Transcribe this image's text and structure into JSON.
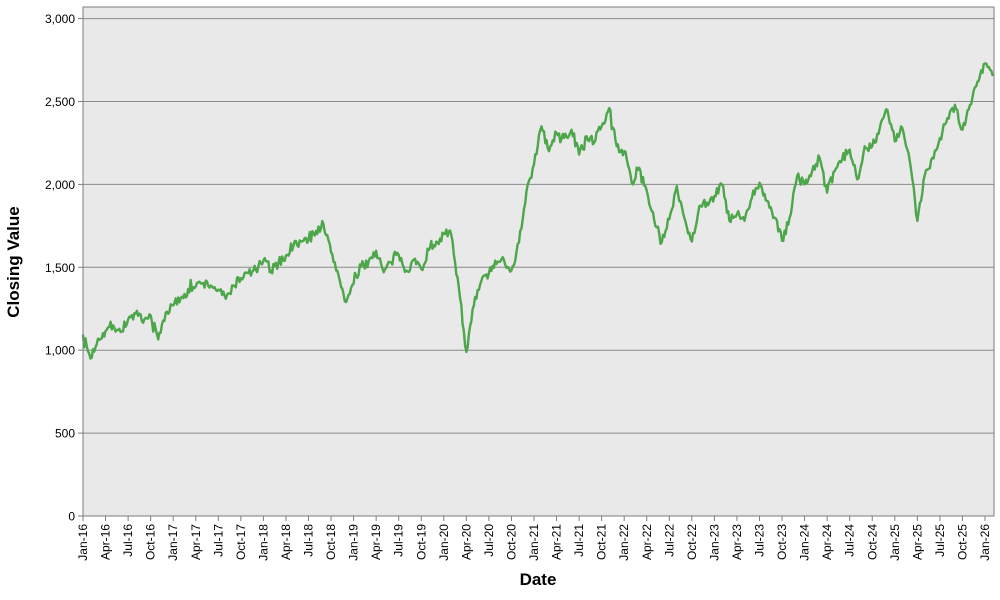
{
  "figure": {
    "background_color": "#ffffff",
    "plot_background_color": "#e9e9e9",
    "grid_color": "#8a8a8a",
    "border_color": "#7d7d7d",
    "tick_color": "#555555"
  },
  "axes": {
    "y": {
      "title": "Closing Value",
      "tick_labels": [
        "0",
        "500",
        "1,000",
        "1,500",
        "2,000",
        "2,500",
        "3,000"
      ],
      "tick_values": [
        0,
        500,
        1000,
        1500,
        2000,
        2500,
        3000
      ]
    },
    "x": {
      "title": "Date",
      "tick_labels": [
        "Jan-16",
        "Apr-16",
        "Jul-16",
        "Oct-16",
        "Jan-17",
        "Apr-17",
        "Jul-17",
        "Oct-17",
        "Jan-18",
        "Apr-18",
        "Jul-18",
        "Oct-18",
        "Jan-19",
        "Apr-19",
        "Jul-19",
        "Oct-19",
        "Jan-20",
        "Apr-20",
        "Jul-20",
        "Oct-20",
        "Jan-21",
        "Apr-21",
        "Jul-21",
        "Oct-21",
        "Jan-22",
        "Apr-22",
        "Jul-22",
        "Oct-22",
        "Jan-23",
        "Apr-23",
        "Jul-23",
        "Oct-23",
        "Jan-24",
        "Apr-24",
        "Jul-24",
        "Oct-24",
        "Jan-25",
        "Apr-25",
        "Jul-25",
        "Oct-25",
        "Jan-26"
      ]
    }
  },
  "chart_data": {
    "type": "line",
    "title": "",
    "xlabel": "Date",
    "ylabel": "Closing Value",
    "ylim": [
      0,
      3060
    ],
    "x_range": [
      "Jan-16",
      "Jan-26"
    ],
    "grid": "horizontal",
    "legend": "none",
    "x_tick_labels": [
      "Jan-16",
      "Apr-16",
      "Jul-16",
      "Oct-16",
      "Jan-17",
      "Apr-17",
      "Jul-17",
      "Oct-17",
      "Jan-18",
      "Apr-18",
      "Jul-18",
      "Oct-18",
      "Jan-19",
      "Apr-19",
      "Jul-19",
      "Oct-19",
      "Jan-20",
      "Apr-20",
      "Jul-20",
      "Oct-20",
      "Jan-21",
      "Apr-21",
      "Jul-21",
      "Oct-21",
      "Jan-22",
      "Apr-22",
      "Jul-22",
      "Oct-22",
      "Jan-23",
      "Apr-23",
      "Jul-23",
      "Oct-23",
      "Jan-24",
      "Apr-24",
      "Jul-24",
      "Oct-24",
      "Jan-25",
      "Apr-25",
      "Jul-25",
      "Oct-25",
      "Jan-26"
    ],
    "y_tick_labels": [
      "0",
      "500",
      "1,000",
      "1,500",
      "2,000",
      "2,500",
      "3,000"
    ],
    "series": [
      {
        "name": "Closing Value",
        "color": "#4DA64A",
        "cadence": "monthly anchor values of a noisy daily line, Jan-2016 to Jan-2026 (last point = right plot edge)",
        "values": [
          1090,
          950,
          1070,
          1115,
          1150,
          1110,
          1185,
          1220,
          1165,
          1210,
          1065,
          1225,
          1270,
          1315,
          1370,
          1385,
          1405,
          1390,
          1365,
          1310,
          1390,
          1435,
          1465,
          1485,
          1540,
          1480,
          1525,
          1570,
          1630,
          1655,
          1665,
          1720,
          1760,
          1590,
          1450,
          1290,
          1400,
          1505,
          1535,
          1600,
          1470,
          1530,
          1575,
          1480,
          1545,
          1490,
          1605,
          1655,
          1700,
          1695,
          1380,
          990,
          1270,
          1420,
          1465,
          1520,
          1545,
          1480,
          1650,
          1960,
          2120,
          2350,
          2200,
          2310,
          2280,
          2330,
          2180,
          2290,
          2250,
          2350,
          2460,
          2230,
          2200,
          2010,
          2100,
          1960,
          1780,
          1650,
          1790,
          1990,
          1800,
          1655,
          1870,
          1890,
          1930,
          2000,
          1780,
          1820,
          1780,
          1920,
          2010,
          1900,
          1800,
          1660,
          1800,
          2050,
          2000,
          2080,
          2160,
          1950,
          2080,
          2150,
          2210,
          2030,
          2230,
          2230,
          2340,
          2450,
          2260,
          2340,
          2140,
          1780,
          2060,
          2160,
          2280,
          2400,
          2480,
          2330,
          2480,
          2620,
          2730,
          2660
        ]
      }
    ]
  }
}
